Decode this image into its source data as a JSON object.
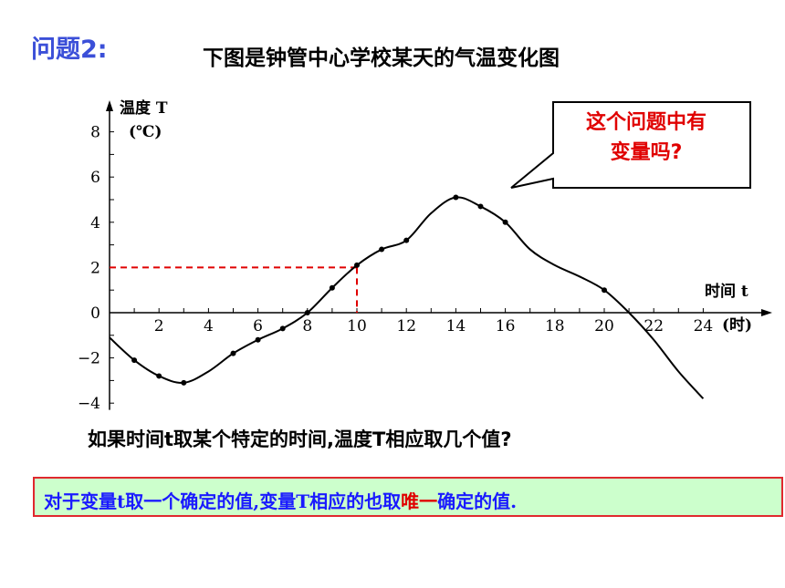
{
  "slide": {
    "problem_label": "问题2:",
    "title": "下图是钟管中心学校某天的气温变化图",
    "callout": {
      "line1": "这个问题中有",
      "line2": "变量吗?"
    },
    "question": "如果时间t取某个特定的时间,温度T相应取几个值?",
    "answer": {
      "before": "对于变量t取一个确定的值,变量T相应的也取",
      "highlight": "唯一",
      "after": "确定的值."
    }
  },
  "chart_data": {
    "type": "line",
    "ylabel_line1": "温度 T",
    "ylabel_line2": "(℃)",
    "xlabel": "时间 t",
    "x_unit": "(时)",
    "xlim": [
      0,
      24
    ],
    "ylim": [
      -4,
      8
    ],
    "x_ticks": [
      2,
      4,
      6,
      8,
      10,
      12,
      14,
      16,
      18,
      20,
      22,
      24
    ],
    "y_ticks": [
      -4,
      -2,
      0,
      2,
      4,
      6,
      8
    ],
    "grid": false,
    "curve": [
      {
        "x": 0,
        "y": -1.1
      },
      {
        "x": 1,
        "y": -2.1
      },
      {
        "x": 2,
        "y": -2.8
      },
      {
        "x": 3,
        "y": -3.1
      },
      {
        "x": 4,
        "y": -2.6
      },
      {
        "x": 5,
        "y": -1.8
      },
      {
        "x": 6,
        "y": -1.2
      },
      {
        "x": 7,
        "y": -0.7
      },
      {
        "x": 8,
        "y": 0
      },
      {
        "x": 9,
        "y": 1.1
      },
      {
        "x": 10,
        "y": 2.1
      },
      {
        "x": 11,
        "y": 2.8
      },
      {
        "x": 12,
        "y": 3.2
      },
      {
        "x": 13,
        "y": 4.4
      },
      {
        "x": 14,
        "y": 5.1
      },
      {
        "x": 15,
        "y": 4.7
      },
      {
        "x": 16,
        "y": 4.0
      },
      {
        "x": 17,
        "y": 2.8
      },
      {
        "x": 18,
        "y": 2.1
      },
      {
        "x": 19,
        "y": 1.6
      },
      {
        "x": 20,
        "y": 1.0
      },
      {
        "x": 21,
        "y": 0
      },
      {
        "x": 22,
        "y": -1.2
      },
      {
        "x": 23,
        "y": -2.6
      },
      {
        "x": 24,
        "y": -3.8
      }
    ],
    "marked_points": [
      {
        "x": 1,
        "y": -2.1
      },
      {
        "x": 2,
        "y": -2.8
      },
      {
        "x": 3,
        "y": -3.1
      },
      {
        "x": 5,
        "y": -1.8
      },
      {
        "x": 6,
        "y": -1.2
      },
      {
        "x": 7,
        "y": -0.7
      },
      {
        "x": 8,
        "y": 0
      },
      {
        "x": 9,
        "y": 1.1
      },
      {
        "x": 10,
        "y": 2.1
      },
      {
        "x": 11,
        "y": 2.8
      },
      {
        "x": 12,
        "y": 3.2
      },
      {
        "x": 14,
        "y": 5.1
      },
      {
        "x": 15,
        "y": 4.7
      },
      {
        "x": 16,
        "y": 4.0
      },
      {
        "x": 20,
        "y": 1.0
      }
    ],
    "reference": {
      "x": 10,
      "y": 2
    },
    "colors": {
      "curve": "#000000",
      "reference": "#e00000"
    }
  }
}
